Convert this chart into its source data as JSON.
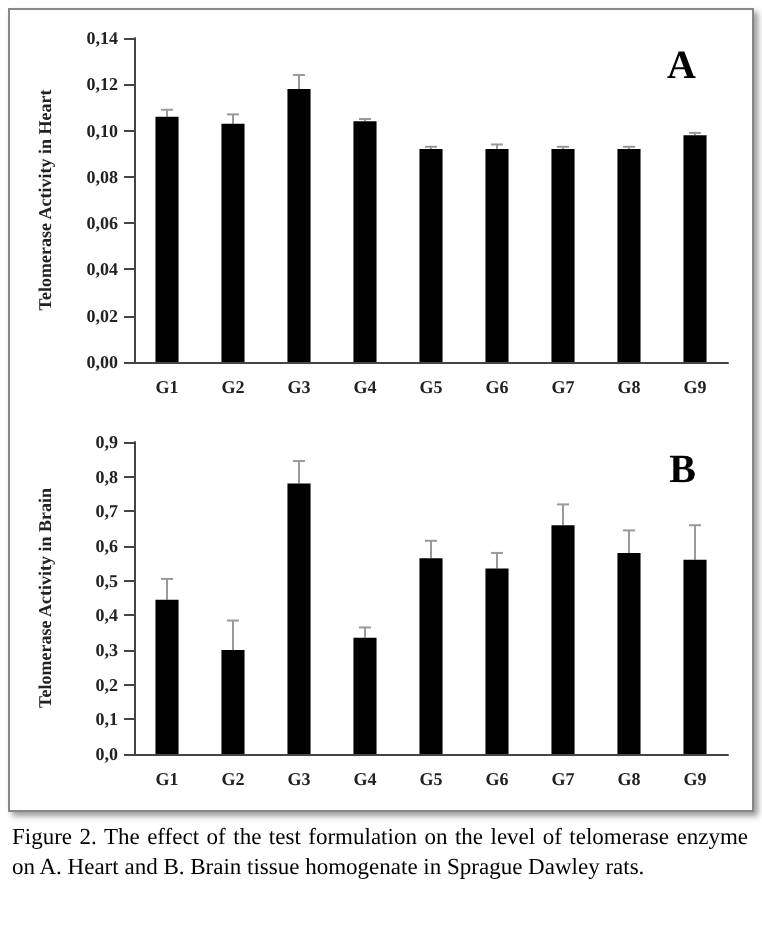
{
  "chart_data": [
    {
      "type": "bar",
      "ylabel": "Telomerase Activity in Heart",
      "annotations": [
        "A"
      ],
      "categories": [
        "G1",
        "G2",
        "G3",
        "G4",
        "G5",
        "G6",
        "G7",
        "G8",
        "G9"
      ],
      "values": [
        0.106,
        0.103,
        0.118,
        0.104,
        0.092,
        0.092,
        0.092,
        0.092,
        0.098
      ],
      "color": "#000000",
      "errors": [
        [
          0.106,
          0.109
        ],
        [
          0.103,
          0.107
        ],
        [
          0.118,
          0.124
        ],
        [
          0.104,
          0.105
        ],
        [
          0.092,
          0.093
        ],
        [
          0.092,
          0.094
        ],
        [
          0.092,
          0.093
        ],
        [
          0.092,
          0.093
        ],
        [
          0.098,
          0.099
        ]
      ],
      "ylim": [
        0,
        0.14
      ],
      "yticks": [
        {
          "value": 0,
          "label": "0,00"
        },
        {
          "value": 0.02,
          "label": "0,02"
        },
        {
          "value": 0.04,
          "label": "0,04"
        },
        {
          "value": 0.06,
          "label": "0,06"
        },
        {
          "value": 0.08,
          "label": "0,08"
        },
        {
          "value": 0.1,
          "label": "0,10"
        },
        {
          "value": 0.12,
          "label": "0,12"
        },
        {
          "value": 0.14,
          "label": "0,14"
        }
      ],
      "grid": false
    },
    {
      "type": "bar",
      "ylabel": "Telomerase Activity in Brain",
      "annotations": [
        "B",
        "Figure 2. The effect of the test formulation on the level of telomerase enzyme on A. Heart and B. Brain tissue homogenate in Sprague Dawley rats."
      ],
      "categories": [
        "G1",
        "G2",
        "G3",
        "G4",
        "G5",
        "G6",
        "G7",
        "G8",
        "G9"
      ],
      "values": [
        0.445,
        0.3,
        0.78,
        0.335,
        0.565,
        0.535,
        0.66,
        0.58,
        0.56
      ],
      "color": "#000000",
      "errors": [
        [
          0.445,
          0.505
        ],
        [
          0.3,
          0.385
        ],
        [
          0.78,
          0.845
        ],
        [
          0.335,
          0.365
        ],
        [
          0.565,
          0.615
        ],
        [
          0.535,
          0.58
        ],
        [
          0.66,
          0.72
        ],
        [
          0.58,
          0.645
        ],
        [
          0.56,
          0.66
        ]
      ],
      "ylim": [
        0,
        0.9
      ],
      "yticks": [
        {
          "value": 0,
          "label": "0,0"
        },
        {
          "value": 0.1,
          "label": "0,1"
        },
        {
          "value": 0.2,
          "label": "0,2"
        },
        {
          "value": 0.3,
          "label": "0,3"
        },
        {
          "value": 0.4,
          "label": "0,4"
        },
        {
          "value": 0.5,
          "label": "0,5"
        },
        {
          "value": 0.6,
          "label": "0,6"
        },
        {
          "value": 0.7,
          "label": "0,7"
        },
        {
          "value": 0.8,
          "label": "0,8"
        },
        {
          "value": 0.9,
          "label": "0,9"
        }
      ],
      "grid": false
    }
  ]
}
